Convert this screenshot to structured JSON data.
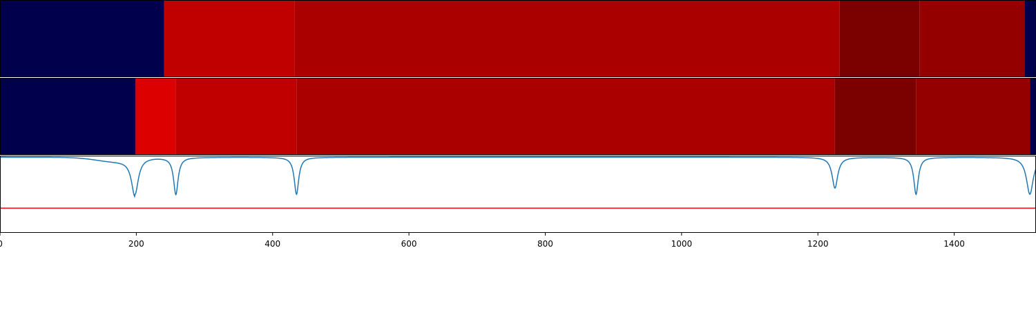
{
  "chart_data": [
    {
      "type": "heatmap",
      "xlim": [
        0,
        1520
      ],
      "bands": [
        {
          "x0": 0,
          "x1": 241,
          "color": "#00004c"
        },
        {
          "x0": 241,
          "x1": 432,
          "color": "#c00000"
        },
        {
          "x0": 432,
          "x1": 1232,
          "color": "#aa0000"
        },
        {
          "x0": 1232,
          "x1": 1349,
          "color": "#7b0000"
        },
        {
          "x0": 1349,
          "x1": 1503,
          "color": "#940000"
        },
        {
          "x0": 1503,
          "x1": 1520,
          "color": "#00004c"
        }
      ]
    },
    {
      "type": "heatmap",
      "xlim": [
        0,
        1520
      ],
      "bands": [
        {
          "x0": 0,
          "x1": 199,
          "color": "#00004c"
        },
        {
          "x0": 199,
          "x1": 258,
          "color": "#dd0000"
        },
        {
          "x0": 258,
          "x1": 435,
          "color": "#c00000"
        },
        {
          "x0": 435,
          "x1": 1225,
          "color": "#aa0000"
        },
        {
          "x0": 1225,
          "x1": 1344,
          "color": "#7b0000"
        },
        {
          "x0": 1344,
          "x1": 1511,
          "color": "#940000"
        },
        {
          "x0": 1511,
          "x1": 1520,
          "color": "#00004c"
        }
      ]
    },
    {
      "type": "line",
      "xlim": [
        0,
        1520
      ],
      "ylim": [
        0,
        1
      ],
      "baseline": 0.98,
      "line_color": "#1f77b4",
      "threshold": {
        "y": 0.32,
        "color": "#ff0000"
      },
      "dips": [
        {
          "x": 198,
          "depth": 0.48,
          "width": 6,
          "broad": true
        },
        {
          "x": 258,
          "depth": 0.48,
          "width": 4
        },
        {
          "x": 435,
          "depth": 0.48,
          "width": 4
        },
        {
          "x": 1225,
          "depth": 0.4,
          "width": 5
        },
        {
          "x": 1344,
          "depth": 0.48,
          "width": 4
        },
        {
          "x": 1511,
          "depth": 0.48,
          "width": 6
        }
      ],
      "xticks": [
        "0",
        "200",
        "400",
        "600",
        "800",
        "1000",
        "1200",
        "1400"
      ]
    }
  ]
}
